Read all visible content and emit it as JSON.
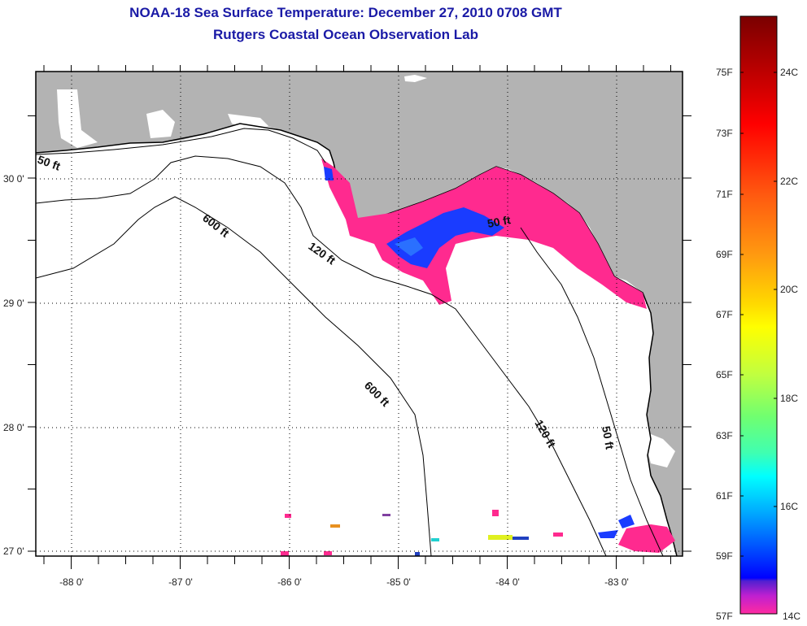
{
  "header": {
    "title": "NOAA-18 Sea Surface Temperature:  December 27, 2010 0708 GMT",
    "subtitle": "Rutgers Coastal Ocean Observation Lab"
  },
  "map": {
    "lon_ticks": [
      "-88 0'",
      "-87 0'",
      "-86 0'",
      "-85 0'",
      "-84 0'",
      "-83 0'"
    ],
    "lat_ticks": [
      "30 0'",
      "29 0'",
      "28 0'",
      "27 0'"
    ],
    "contours": [
      {
        "label": "50 ft",
        "id": "nw"
      },
      {
        "label": "600 ft",
        "id": "north"
      },
      {
        "label": "120 ft",
        "id": "north"
      },
      {
        "label": "50 ft",
        "id": "bigbend"
      },
      {
        "label": "600 ft",
        "id": "south"
      },
      {
        "label": "120 ft",
        "id": "south"
      },
      {
        "label": "50 ft",
        "id": "south"
      }
    ],
    "colors": {
      "land": "#b3b3b3",
      "ocean_nodata": "#ffffff",
      "sst_cold": "#ff2a8f",
      "sst_blue": "#1a3cff",
      "title": "#1a1aa6"
    }
  },
  "colorbar": {
    "f_labels": [
      "75F",
      "73F",
      "71F",
      "69F",
      "67F",
      "65F",
      "63F",
      "61F",
      "59F",
      "57F"
    ],
    "c_labels": [
      "24C",
      "22C",
      "20C",
      "18C",
      "16C",
      "14C"
    ]
  }
}
